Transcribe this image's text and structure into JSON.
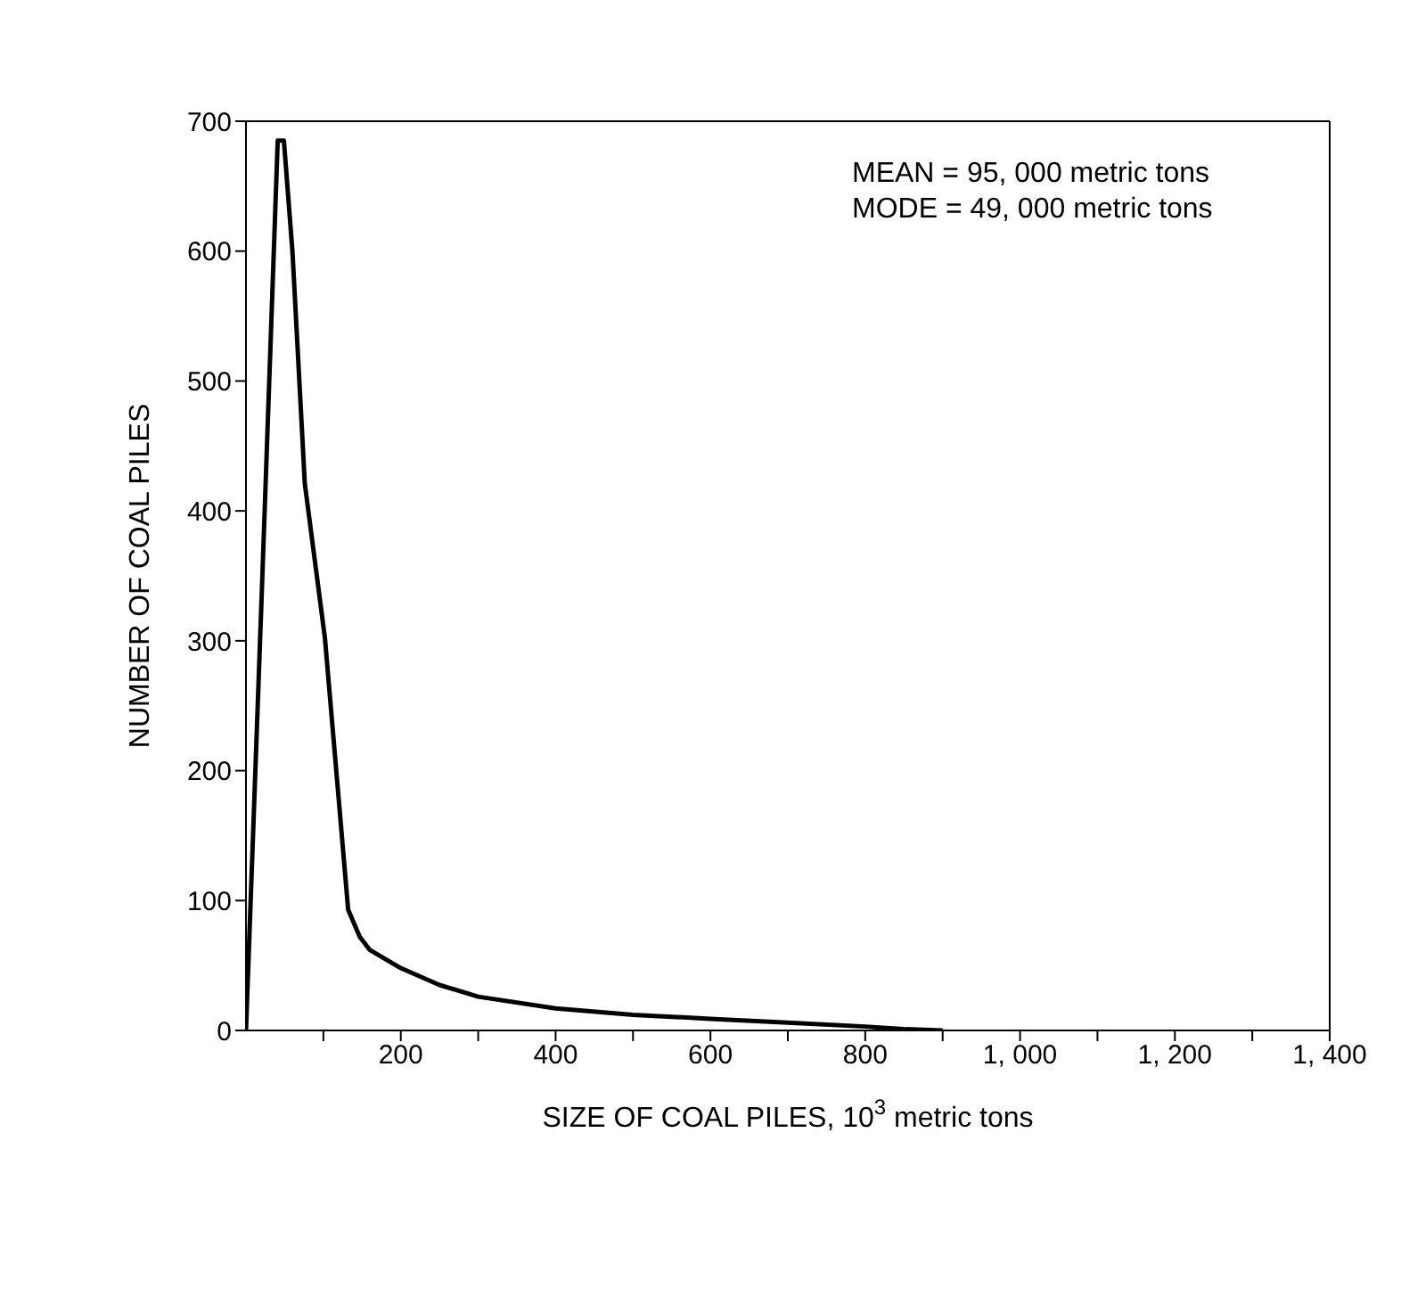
{
  "chart_data": {
    "type": "line",
    "xlabel": "SIZE OF COAL PILES, 10$^{3}$ metric tons",
    "ylabel": "NUMBER OF COAL PILES",
    "annotations": [
      "MEAN = 95, 000 metric tons",
      "MODE = 49, 000 metric tons"
    ],
    "x": [
      0,
      20,
      41,
      49,
      60,
      76,
      102,
      132,
      147,
      160,
      200,
      250,
      300,
      400,
      500,
      600,
      700,
      800,
      850,
      900
    ],
    "series": [
      {
        "color": "#000000",
        "values": [
          0,
          330,
          685,
          685,
          600,
          421,
          302,
          93,
          72,
          62,
          48,
          35,
          26,
          17,
          12,
          9,
          6,
          3,
          1,
          0
        ]
      }
    ],
    "xlim": [
      0,
      1400
    ],
    "xticks": [
      {
        "value": 100,
        "label": null
      },
      200,
      {
        "value": 300,
        "label": null
      },
      400,
      {
        "value": 500,
        "label": null
      },
      600,
      {
        "value": 700,
        "label": null
      },
      800,
      {
        "value": 900,
        "label": null
      },
      {
        "value": 1000,
        "label": "1, 000"
      },
      {
        "value": 1100,
        "label": null
      },
      {
        "value": 1200,
        "label": "1, 200"
      },
      {
        "value": 1300,
        "label": null
      },
      {
        "value": 1400,
        "label": "1, 400"
      }
    ],
    "ylim": [
      0,
      700
    ],
    "yticks": [
      0,
      100,
      200,
      300,
      400,
      500,
      600,
      700
    ],
    "grid": false,
    "marker": "none",
    "line_style": "solid"
  }
}
